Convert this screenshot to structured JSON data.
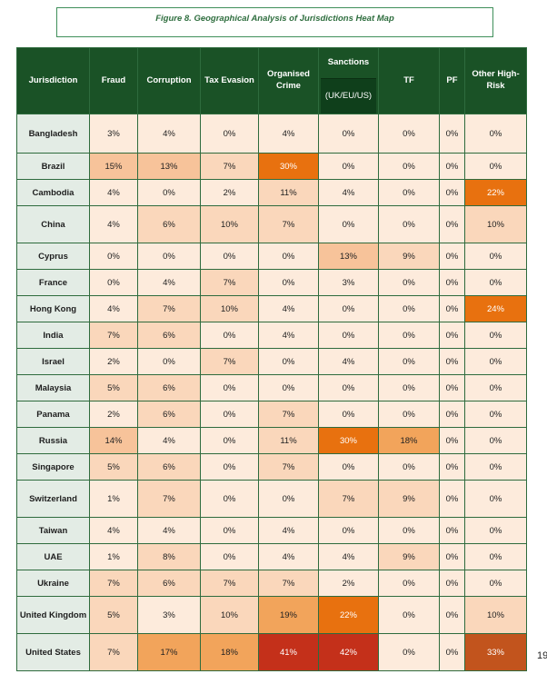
{
  "caption": "Figure 8. Geographical Analysis of Jurisdictions Heat Map",
  "page_number": "19",
  "headers": {
    "jurisdiction": "Jurisdiction",
    "fraud": "Fraud",
    "corruption": "Corruption",
    "tax_evasion": "Tax Evasion",
    "organised_crime": "Organised Crime",
    "sanctions": "Sanctions",
    "sanctions_sub": "(UK/EU/US)",
    "tf": "TF",
    "pf": "PF",
    "other": "Other High-Risk"
  },
  "chart_data": {
    "type": "heatmap",
    "columns": [
      "Fraud",
      "Corruption",
      "Tax Evasion",
      "Organised Crime",
      "Sanctions (UK/EU/US)",
      "TF",
      "PF",
      "Other High-Risk"
    ],
    "rows": [
      {
        "jurisdiction": "Bangladesh",
        "values": [
          3,
          4,
          0,
          4,
          0,
          0,
          0,
          0
        ]
      },
      {
        "jurisdiction": "Brazil",
        "values": [
          15,
          13,
          7,
          30,
          0,
          0,
          0,
          0
        ]
      },
      {
        "jurisdiction": "Cambodia",
        "values": [
          4,
          0,
          2,
          11,
          4,
          0,
          0,
          22
        ]
      },
      {
        "jurisdiction": "China",
        "values": [
          4,
          6,
          10,
          7,
          0,
          0,
          0,
          10
        ]
      },
      {
        "jurisdiction": "Cyprus",
        "values": [
          0,
          0,
          0,
          0,
          13,
          9,
          0,
          0
        ]
      },
      {
        "jurisdiction": "France",
        "values": [
          0,
          4,
          7,
          0,
          3,
          0,
          0,
          0
        ]
      },
      {
        "jurisdiction": "Hong Kong",
        "values": [
          4,
          7,
          10,
          4,
          0,
          0,
          0,
          24
        ]
      },
      {
        "jurisdiction": "India",
        "values": [
          7,
          6,
          0,
          4,
          0,
          0,
          0,
          0
        ]
      },
      {
        "jurisdiction": "Israel",
        "values": [
          2,
          0,
          7,
          0,
          4,
          0,
          0,
          0
        ]
      },
      {
        "jurisdiction": "Malaysia",
        "values": [
          5,
          6,
          0,
          0,
          0,
          0,
          0,
          0
        ]
      },
      {
        "jurisdiction": "Panama",
        "values": [
          2,
          6,
          0,
          7,
          0,
          0,
          0,
          0
        ]
      },
      {
        "jurisdiction": "Russia",
        "values": [
          14,
          4,
          0,
          11,
          30,
          18,
          0,
          0
        ]
      },
      {
        "jurisdiction": "Singapore",
        "values": [
          5,
          6,
          0,
          7,
          0,
          0,
          0,
          0
        ]
      },
      {
        "jurisdiction": "Switzerland",
        "values": [
          1,
          7,
          0,
          0,
          7,
          9,
          0,
          0
        ]
      },
      {
        "jurisdiction": "Taiwan",
        "values": [
          4,
          4,
          0,
          4,
          0,
          0,
          0,
          0
        ]
      },
      {
        "jurisdiction": "UAE",
        "values": [
          1,
          8,
          0,
          4,
          4,
          9,
          0,
          0
        ]
      },
      {
        "jurisdiction": "Ukraine",
        "values": [
          7,
          6,
          7,
          7,
          2,
          0,
          0,
          0
        ]
      },
      {
        "jurisdiction": "United Kingdom",
        "values": [
          5,
          3,
          10,
          19,
          22,
          0,
          0,
          10
        ]
      },
      {
        "jurisdiction": "United States",
        "values": [
          7,
          17,
          18,
          41,
          42,
          0,
          0,
          33
        ]
      }
    ],
    "unit": "%"
  }
}
